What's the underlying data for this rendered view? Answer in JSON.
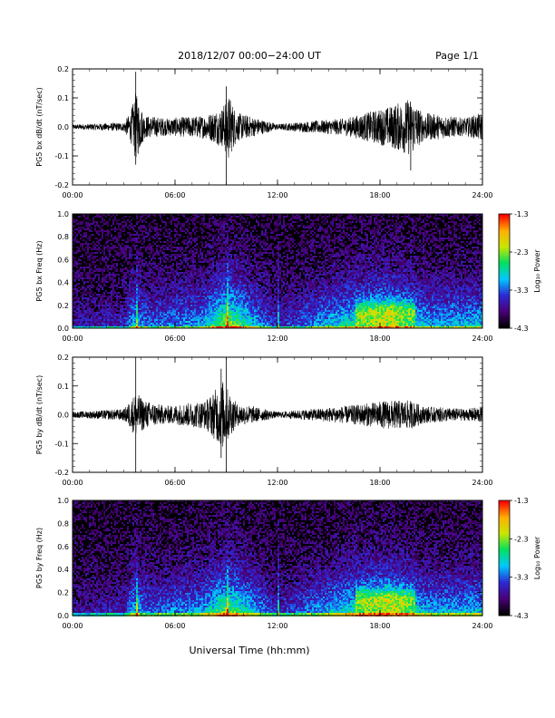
{
  "header": {
    "title": "2018/12/07  00:00−24:00 UT",
    "page": "Page 1/1"
  },
  "x_axis": {
    "ticks": [
      "00:00",
      "06:00",
      "12:00",
      "18:00",
      "24:00"
    ],
    "label": "Universal Time (hh:mm)"
  },
  "colorbar": {
    "ticks": [
      "-1.3",
      "-2.3",
      "-3.3",
      "-4.3"
    ],
    "label": "Log₁₀ Power",
    "colors": [
      "#000000",
      "#4b007a",
      "#2b2bd6",
      "#00c8ff",
      "#00e060",
      "#c8e600",
      "#ffb000",
      "#ff0000"
    ]
  },
  "chart_data": [
    {
      "type": "line",
      "ylabel": "PG5 bx dB/dt (nT/sec)",
      "xlim": [
        0,
        24
      ],
      "ylim": [
        -0.2,
        0.2
      ],
      "y_ticks": [
        "0.2",
        "0.1",
        "0.0",
        "-0.1",
        "-0.2"
      ],
      "envelope": [
        [
          0,
          0.008
        ],
        [
          3,
          0.015
        ],
        [
          3.4,
          0.05
        ],
        [
          3.7,
          0.12
        ],
        [
          4.2,
          0.04
        ],
        [
          5.5,
          0.03
        ],
        [
          7.8,
          0.04
        ],
        [
          8.8,
          0.07
        ],
        [
          9.1,
          0.12
        ],
        [
          9.6,
          0.05
        ],
        [
          10.5,
          0.035
        ],
        [
          12,
          0.01
        ],
        [
          14,
          0.02
        ],
        [
          16,
          0.03
        ],
        [
          18.5,
          0.07
        ],
        [
          19.8,
          0.1
        ],
        [
          20.5,
          0.05
        ],
        [
          23,
          0.03
        ],
        [
          24,
          0.05
        ]
      ],
      "spikes": [
        [
          3.7,
          0.19,
          -0.13
        ],
        [
          9.0,
          0.14,
          -0.2
        ],
        [
          19.8,
          0.06,
          -0.15
        ]
      ]
    },
    {
      "type": "heatmap",
      "ylabel": "PG5 bx Freq (Hz)",
      "xlim": [
        0,
        24
      ],
      "ylim": [
        0,
        1.0
      ],
      "y_ticks": [
        "1.0",
        "0.8",
        "0.6",
        "0.4",
        "0.2",
        "0.0"
      ],
      "zlim": [
        -4.3,
        -1.3
      ],
      "activity": [
        [
          0,
          0.15
        ],
        [
          3,
          0.2
        ],
        [
          3.5,
          0.45
        ],
        [
          4.5,
          0.3
        ],
        [
          7.5,
          0.4
        ],
        [
          9.0,
          0.75
        ],
        [
          10.5,
          0.45
        ],
        [
          12.0,
          0.2
        ],
        [
          14,
          0.35
        ],
        [
          16.5,
          0.55
        ],
        [
          18.5,
          0.65
        ],
        [
          21,
          0.4
        ],
        [
          24,
          0.45
        ]
      ]
    },
    {
      "type": "line",
      "ylabel": "PG5 by dB/dt (nT/sec)",
      "xlim": [
        0,
        24
      ],
      "ylim": [
        -0.2,
        0.2
      ],
      "y_ticks": [
        "0.2",
        "0.1",
        "0.0",
        "-0.1",
        "-0.2"
      ],
      "envelope": [
        [
          0,
          0.01
        ],
        [
          3,
          0.02
        ],
        [
          3.4,
          0.05
        ],
        [
          3.7,
          0.08
        ],
        [
          4.2,
          0.05
        ],
        [
          5.5,
          0.03
        ],
        [
          7.8,
          0.05
        ],
        [
          8.8,
          0.12
        ],
        [
          9.1,
          0.09
        ],
        [
          9.6,
          0.04
        ],
        [
          10.5,
          0.03
        ],
        [
          12,
          0.01
        ],
        [
          14,
          0.02
        ],
        [
          16,
          0.03
        ],
        [
          18.5,
          0.05
        ],
        [
          19.8,
          0.05
        ],
        [
          20.5,
          0.03
        ],
        [
          23,
          0.02
        ],
        [
          24,
          0.03
        ]
      ],
      "spikes": [
        [
          3.7,
          0.2,
          -0.2
        ],
        [
          8.7,
          0.16,
          -0.15
        ],
        [
          9.0,
          0.2,
          -0.2
        ]
      ]
    },
    {
      "type": "heatmap",
      "ylabel": "PG5 by Freq (Hz)",
      "xlim": [
        0,
        24
      ],
      "ylim": [
        0,
        1.0
      ],
      "y_ticks": [
        "1.0",
        "0.8",
        "0.6",
        "0.4",
        "0.2",
        "0.0"
      ],
      "zlim": [
        -4.3,
        -1.3
      ],
      "activity": [
        [
          0,
          0.15
        ],
        [
          3,
          0.2
        ],
        [
          3.5,
          0.45
        ],
        [
          4.5,
          0.3
        ],
        [
          7.5,
          0.4
        ],
        [
          9.0,
          0.7
        ],
        [
          10.5,
          0.45
        ],
        [
          12.0,
          0.2
        ],
        [
          14,
          0.35
        ],
        [
          16.5,
          0.55
        ],
        [
          18.5,
          0.65
        ],
        [
          21,
          0.4
        ],
        [
          24,
          0.45
        ]
      ]
    }
  ]
}
